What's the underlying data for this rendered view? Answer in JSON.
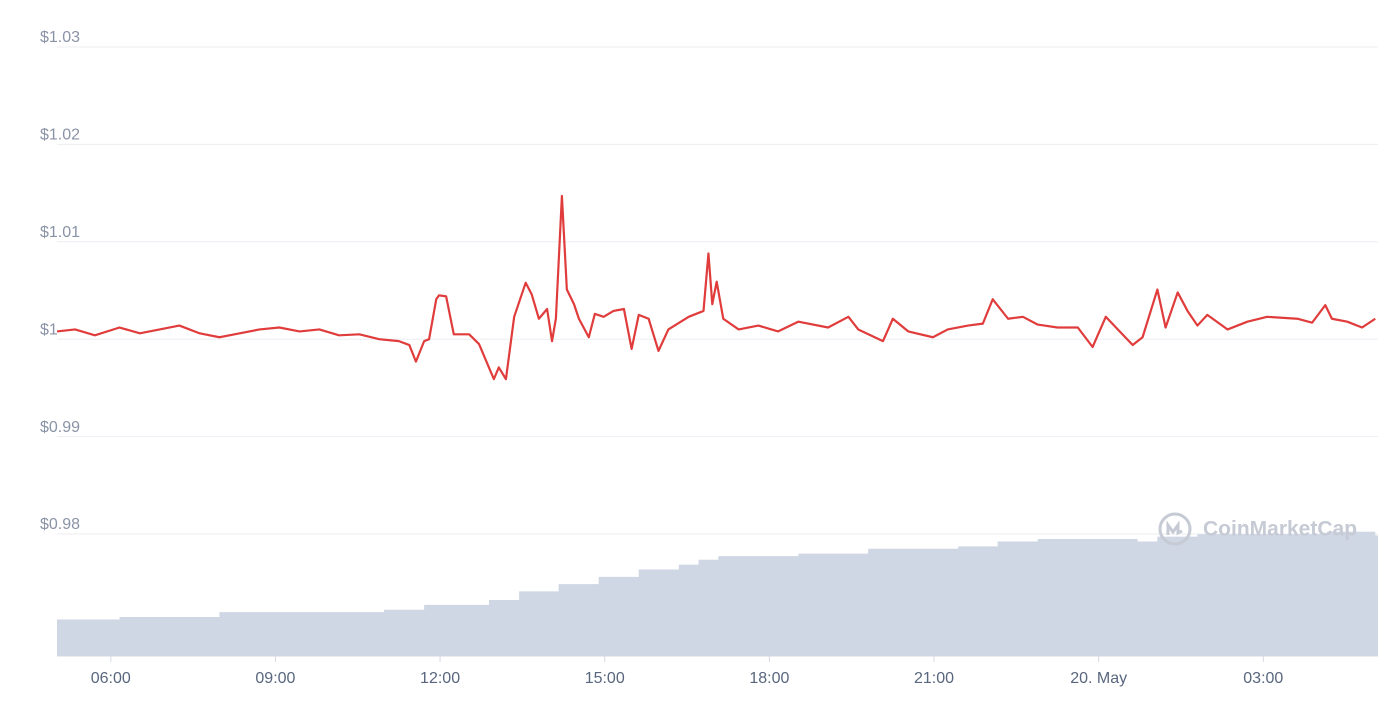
{
  "chart_data": {
    "type": "line",
    "watermark": "CoinMarketCap",
    "color": "#e03c3c",
    "x": [
      5.02,
      5.35,
      5.71,
      6.16,
      6.53,
      6.89,
      7.25,
      7.62,
      7.98,
      8.35,
      8.71,
      9.07,
      9.44,
      9.8,
      10.16,
      10.53,
      10.89,
      11.25,
      11.44,
      11.56,
      11.71,
      11.8,
      11.93,
      11.98,
      12.11,
      12.25,
      12.53,
      12.71,
      12.89,
      12.98,
      13.07,
      13.2,
      13.35,
      13.56,
      13.67,
      13.8,
      13.95,
      14.04,
      14.11,
      14.22,
      14.31,
      14.44,
      14.53,
      14.71,
      14.82,
      14.98,
      15.16,
      15.35,
      15.49,
      15.62,
      15.8,
      15.98,
      16.16,
      16.53,
      16.8,
      16.89,
      16.96,
      17.04,
      17.16,
      17.44,
      17.8,
      18.16,
      18.53,
      19.07,
      19.44,
      19.62,
      20.07,
      20.25,
      20.53,
      20.98,
      21.25,
      21.62,
      21.89,
      22.07,
      22.35,
      22.62,
      22.89,
      23.25,
      23.62,
      23.89,
      24.13,
      24.35,
      24.62,
      24.8,
      25.07,
      25.22,
      25.44,
      25.62,
      25.8,
      25.98,
      26.35,
      26.71,
      27.07,
      27.62,
      27.89,
      28.13,
      28.25,
      28.53,
      28.8,
      29.04
    ],
    "values": [
      1.0008,
      1.001,
      1.0004,
      1.0012,
      1.0006,
      1.001,
      1.0014,
      1.0006,
      1.0002,
      1.0006,
      1.001,
      1.0012,
      1.0008,
      1.001,
      1.0004,
      1.0005,
      1.0,
      0.9998,
      0.9994,
      0.9977,
      0.9998,
      1.0,
      1.0041,
      1.0045,
      1.0044,
      1.0005,
      1.0005,
      0.9995,
      0.9971,
      0.9959,
      0.9971,
      0.9959,
      1.0023,
      1.0058,
      1.0046,
      1.0021,
      1.0031,
      0.9998,
      1.0021,
      1.0147,
      1.0051,
      1.0036,
      1.0021,
      1.0002,
      1.0026,
      1.0023,
      1.0029,
      1.0031,
      0.999,
      1.0025,
      1.0021,
      0.9988,
      1.001,
      1.0023,
      1.0029,
      1.0088,
      1.0036,
      1.0059,
      1.0021,
      1.001,
      1.0014,
      1.0008,
      1.0018,
      1.0012,
      1.0023,
      1.001,
      0.9998,
      1.0021,
      1.0008,
      1.0002,
      1.001,
      1.0014,
      1.0016,
      1.0041,
      1.0021,
      1.0023,
      1.0015,
      1.0012,
      1.0012,
      0.9992,
      1.0023,
      1.001,
      0.9994,
      1.0002,
      1.0051,
      1.0012,
      1.0048,
      1.0029,
      1.0014,
      1.0025,
      1.001,
      1.0018,
      1.0023,
      1.0021,
      1.0017,
      1.0035,
      1.0021,
      1.0018,
      1.0012,
      1.0021
    ],
    "volume_x": [
      5.02,
      6.16,
      7.98,
      10.98,
      11.71,
      12.89,
      13.44,
      14.16,
      14.89,
      15.62,
      16.35,
      16.71,
      17.07,
      18.53,
      19.8,
      21.44,
      22.16,
      22.89,
      24.71,
      25.07,
      25.8,
      28.16,
      29.04
    ],
    "volume_values": [
      30,
      32,
      36,
      38,
      42,
      46,
      53,
      59,
      65,
      71,
      75,
      79,
      82,
      84,
      88,
      90,
      94,
      96,
      94,
      98,
      100,
      102,
      99
    ],
    "volume_color": "#cfd6e4",
    "y2lim": [
      0,
      110
    ],
    "xlim": [
      5.02,
      29.09
    ],
    "xticks": [
      {
        "value": 6,
        "label": "06:00"
      },
      {
        "value": 9,
        "label": "09:00"
      },
      {
        "value": 12,
        "label": "12:00"
      },
      {
        "value": 15,
        "label": "15:00"
      },
      {
        "value": 18,
        "label": "18:00"
      },
      {
        "value": 21,
        "label": "21:00"
      },
      {
        "value": 24,
        "label": "20. May"
      },
      {
        "value": 27,
        "label": "03:00"
      }
    ],
    "ylim": [
      0.98,
      1.03
    ],
    "yticks": [
      {
        "value": 0.98,
        "label": "$0.98"
      },
      {
        "value": 0.99,
        "label": "$0.99"
      },
      {
        "value": 1,
        "label": "$1"
      },
      {
        "value": 1.01,
        "label": "$1.01"
      },
      {
        "value": 1.02,
        "label": "$1.02"
      },
      {
        "value": 1.03,
        "label": "$1.03"
      }
    ],
    "grid": true
  }
}
